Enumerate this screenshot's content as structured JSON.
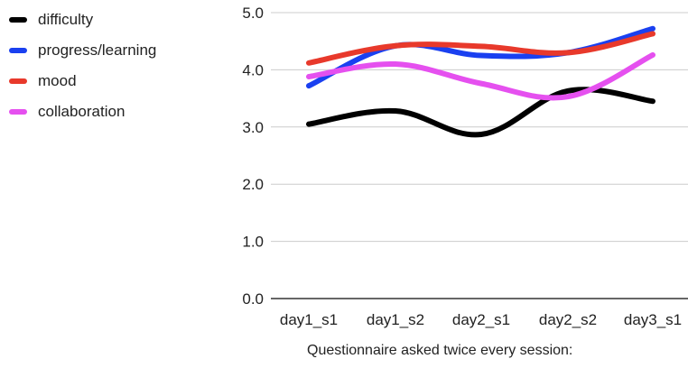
{
  "chart_data": {
    "type": "line",
    "categories": [
      "day1_s1",
      "day1_s2",
      "day2_s1",
      "day2_s2",
      "day3_s1"
    ],
    "ylim": [
      0,
      5
    ],
    "yticks": [
      "0.0",
      "1.0",
      "2.0",
      "3.0",
      "4.0",
      "5.0"
    ],
    "xlabel": "Questionnaire asked twice every session:",
    "ylabel": "",
    "title": "",
    "grid": true,
    "legend_position": "left",
    "series": [
      {
        "name": "difficulty",
        "color": "#000000",
        "values": [
          3.05,
          3.28,
          2.87,
          3.63,
          3.45
        ]
      },
      {
        "name": "progress/learning",
        "color": "#1a40f0",
        "values": [
          3.72,
          4.42,
          4.25,
          4.3,
          4.72
        ]
      },
      {
        "name": "mood",
        "color": "#e8392b",
        "values": [
          4.12,
          4.42,
          4.41,
          4.3,
          4.63
        ]
      },
      {
        "name": "collaboration",
        "color": "#e550ef",
        "values": [
          3.88,
          4.1,
          3.76,
          3.53,
          4.26
        ]
      }
    ]
  }
}
